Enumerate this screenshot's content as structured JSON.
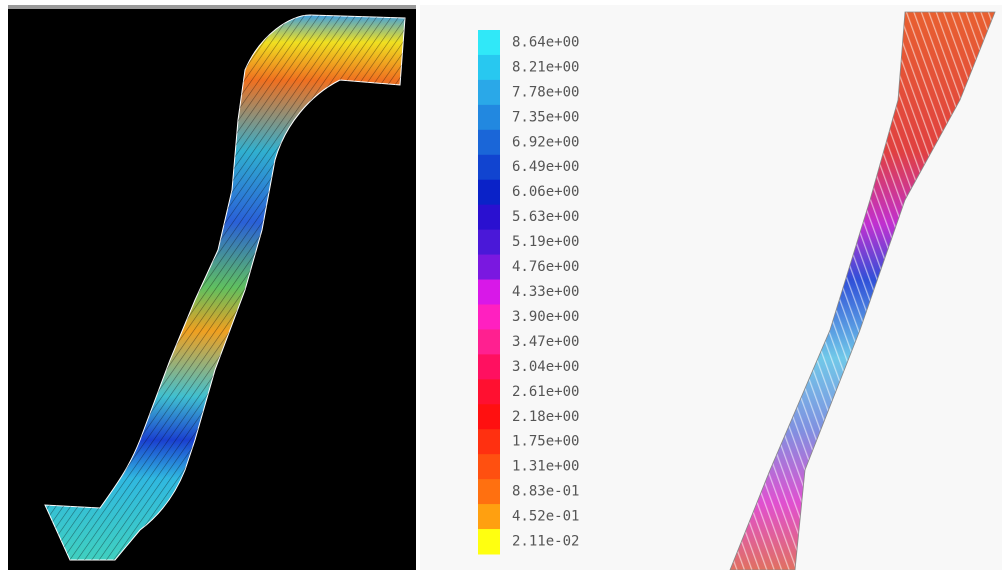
{
  "colorbar": {
    "entries": [
      {
        "label": "8.64e+00",
        "color": "#30e8f8"
      },
      {
        "label": "8.21e+00",
        "color": "#28c8f0"
      },
      {
        "label": "7.78e+00",
        "color": "#2aa8e8"
      },
      {
        "label": "7.35e+00",
        "color": "#2288e0"
      },
      {
        "label": "6.92e+00",
        "color": "#1a66d8"
      },
      {
        "label": "6.49e+00",
        "color": "#1144d0"
      },
      {
        "label": "6.06e+00",
        "color": "#0a22c8"
      },
      {
        "label": "5.63e+00",
        "color": "#2a10d0"
      },
      {
        "label": "5.19e+00",
        "color": "#4a18d8"
      },
      {
        "label": "4.76e+00",
        "color": "#7a18e0"
      },
      {
        "label": "4.33e+00",
        "color": "#d818e8"
      },
      {
        "label": "3.90e+00",
        "color": "#ff20c0"
      },
      {
        "label": "3.47e+00",
        "color": "#ff2090"
      },
      {
        "label": "3.04e+00",
        "color": "#ff1060"
      },
      {
        "label": "2.61e+00",
        "color": "#ff1030"
      },
      {
        "label": "2.18e+00",
        "color": "#ff1010"
      },
      {
        "label": "1.75e+00",
        "color": "#ff3010"
      },
      {
        "label": "1.31e+00",
        "color": "#ff5010"
      },
      {
        "label": "8.83e-01",
        "color": "#ff7010"
      },
      {
        "label": "4.52e-01",
        "color": "#ffa010"
      },
      {
        "label": "2.11e-02",
        "color": "#ffff10"
      }
    ]
  }
}
